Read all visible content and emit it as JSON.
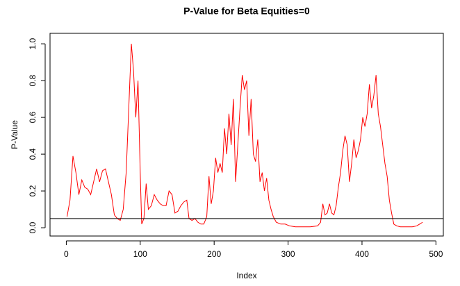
{
  "chart_data": {
    "type": "line",
    "title": "P-Value for Beta Equities=0",
    "x_label": "Index",
    "y_label": "P-Value",
    "series": [
      {
        "color": "#ff0000",
        "x": [
          1,
          5,
          9,
          13,
          17,
          21,
          25,
          29,
          33,
          37,
          41,
          45,
          49,
          53,
          57,
          61,
          65,
          69,
          73,
          77,
          81,
          85,
          88,
          91,
          94,
          97,
          100,
          102,
          105,
          108,
          111,
          115,
          119,
          123,
          127,
          131,
          135,
          139,
          143,
          147,
          151,
          155,
          159,
          163,
          166,
          170,
          174,
          178,
          182,
          186,
          190,
          193,
          196,
          199,
          202,
          205,
          208,
          211,
          214,
          217,
          220,
          223,
          226,
          229,
          232,
          235,
          238,
          241,
          244,
          247,
          250,
          253,
          256,
          259,
          262,
          265,
          268,
          271,
          274,
          277,
          280,
          284,
          290,
          296,
          302,
          310,
          320,
          330,
          340,
          344,
          347,
          350,
          353,
          356,
          359,
          362,
          365,
          368,
          371,
          374,
          377,
          380,
          383,
          386,
          389,
          392,
          395,
          398,
          401,
          404,
          407,
          410,
          413,
          416,
          419,
          422,
          425,
          428,
          431,
          434,
          437,
          440,
          443,
          447,
          452,
          460,
          468,
          474,
          478,
          482
        ],
        "values": [
          0.06,
          0.15,
          0.39,
          0.3,
          0.18,
          0.26,
          0.22,
          0.21,
          0.18,
          0.25,
          0.32,
          0.25,
          0.31,
          0.32,
          0.25,
          0.18,
          0.07,
          0.05,
          0.04,
          0.1,
          0.3,
          0.7,
          1.0,
          0.85,
          0.6,
          0.8,
          0.3,
          0.02,
          0.05,
          0.24,
          0.1,
          0.12,
          0.18,
          0.15,
          0.13,
          0.12,
          0.12,
          0.2,
          0.18,
          0.08,
          0.09,
          0.12,
          0.14,
          0.15,
          0.05,
          0.04,
          0.05,
          0.03,
          0.02,
          0.02,
          0.06,
          0.28,
          0.13,
          0.2,
          0.38,
          0.3,
          0.35,
          0.3,
          0.54,
          0.4,
          0.62,
          0.45,
          0.7,
          0.25,
          0.45,
          0.65,
          0.83,
          0.75,
          0.8,
          0.5,
          0.7,
          0.4,
          0.36,
          0.48,
          0.25,
          0.3,
          0.2,
          0.27,
          0.15,
          0.1,
          0.06,
          0.03,
          0.02,
          0.02,
          0.01,
          0.005,
          0.005,
          0.005,
          0.01,
          0.03,
          0.13,
          0.07,
          0.08,
          0.13,
          0.08,
          0.07,
          0.12,
          0.22,
          0.3,
          0.42,
          0.5,
          0.45,
          0.25,
          0.35,
          0.48,
          0.38,
          0.42,
          0.48,
          0.6,
          0.55,
          0.62,
          0.78,
          0.65,
          0.72,
          0.83,
          0.62,
          0.55,
          0.45,
          0.35,
          0.28,
          0.15,
          0.08,
          0.02,
          0.01,
          0.005,
          0.005,
          0.005,
          0.01,
          0.02,
          0.03
        ]
      }
    ],
    "hline": 0.05,
    "xlim": [
      -22,
      510
    ],
    "ylim": [
      -0.045,
      1.057
    ],
    "xticks": [
      0,
      100,
      200,
      300,
      400,
      500
    ],
    "yticks": [
      {
        "value": 0,
        "label": "0.0"
      },
      0.2,
      0.4,
      0.6,
      0.8,
      {
        "value": 1,
        "label": "1.0"
      }
    ]
  }
}
